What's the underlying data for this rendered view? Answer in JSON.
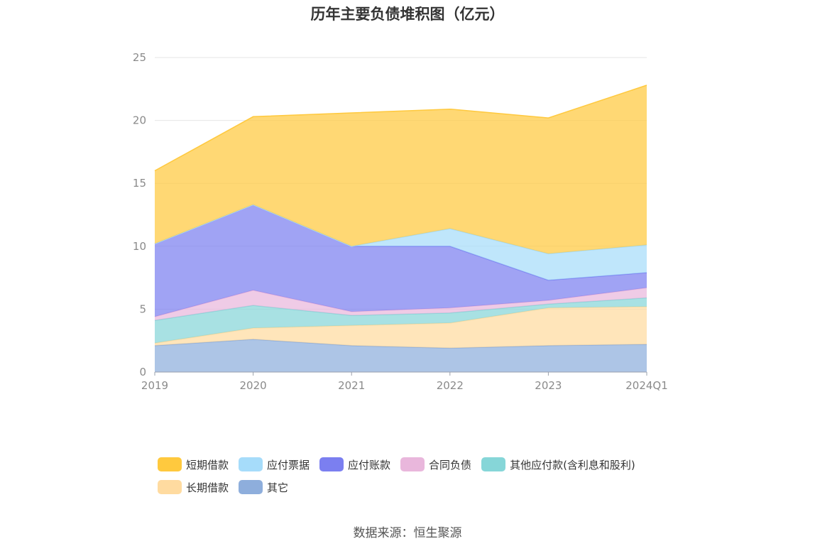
{
  "chart_data": {
    "type": "area",
    "stacked": true,
    "title": "历年主要负债堆积图（亿元）",
    "source": "数据来源：恒生聚源",
    "x": [
      "2019",
      "2020",
      "2021",
      "2022",
      "2023",
      "2024Q1"
    ],
    "ylim": [
      0,
      25
    ],
    "yticks": [
      "0",
      "5",
      "10",
      "15",
      "20",
      "25"
    ],
    "grid": true,
    "legend_position": "bottom",
    "series": [
      {
        "name": "其它",
        "color": "#8eaedc",
        "values": [
          2.1,
          2.6,
          2.1,
          1.9,
          2.1,
          2.2
        ]
      },
      {
        "name": "长期借款",
        "color": "#ffdba0",
        "values": [
          0.2,
          0.9,
          1.6,
          2.0,
          3.0,
          3.0
        ]
      },
      {
        "name": "其他应付款(含利息和股利)",
        "color": "#86d6d8",
        "values": [
          1.8,
          1.8,
          0.8,
          0.8,
          0.3,
          0.7
        ]
      },
      {
        "name": "合同负债",
        "color": "#e9b7dc",
        "values": [
          0.3,
          1.2,
          0.3,
          0.4,
          0.3,
          0.8
        ]
      },
      {
        "name": "应付账款",
        "color": "#7b7ff0",
        "values": [
          5.8,
          6.8,
          5.2,
          4.9,
          1.6,
          1.2
        ]
      },
      {
        "name": "应付票据",
        "color": "#a6dcfa",
        "values": [
          0.0,
          0.0,
          0.0,
          1.4,
          2.1,
          2.2
        ]
      },
      {
        "name": "短期借款",
        "color": "#ffc93e",
        "values": [
          5.8,
          7.0,
          10.6,
          9.5,
          10.8,
          12.7
        ]
      }
    ],
    "legend": [
      {
        "name": "短期借款",
        "color": "#ffc93e"
      },
      {
        "name": "应付票据",
        "color": "#a6dcfa"
      },
      {
        "name": "应付账款",
        "color": "#7b7ff0"
      },
      {
        "name": "合同负债",
        "color": "#e9b7dc"
      },
      {
        "name": "其他应付款(含利息和股利)",
        "color": "#86d6d8"
      },
      {
        "name": "长期借款",
        "color": "#ffdba0"
      },
      {
        "name": "其它",
        "color": "#8eaedc"
      }
    ]
  }
}
